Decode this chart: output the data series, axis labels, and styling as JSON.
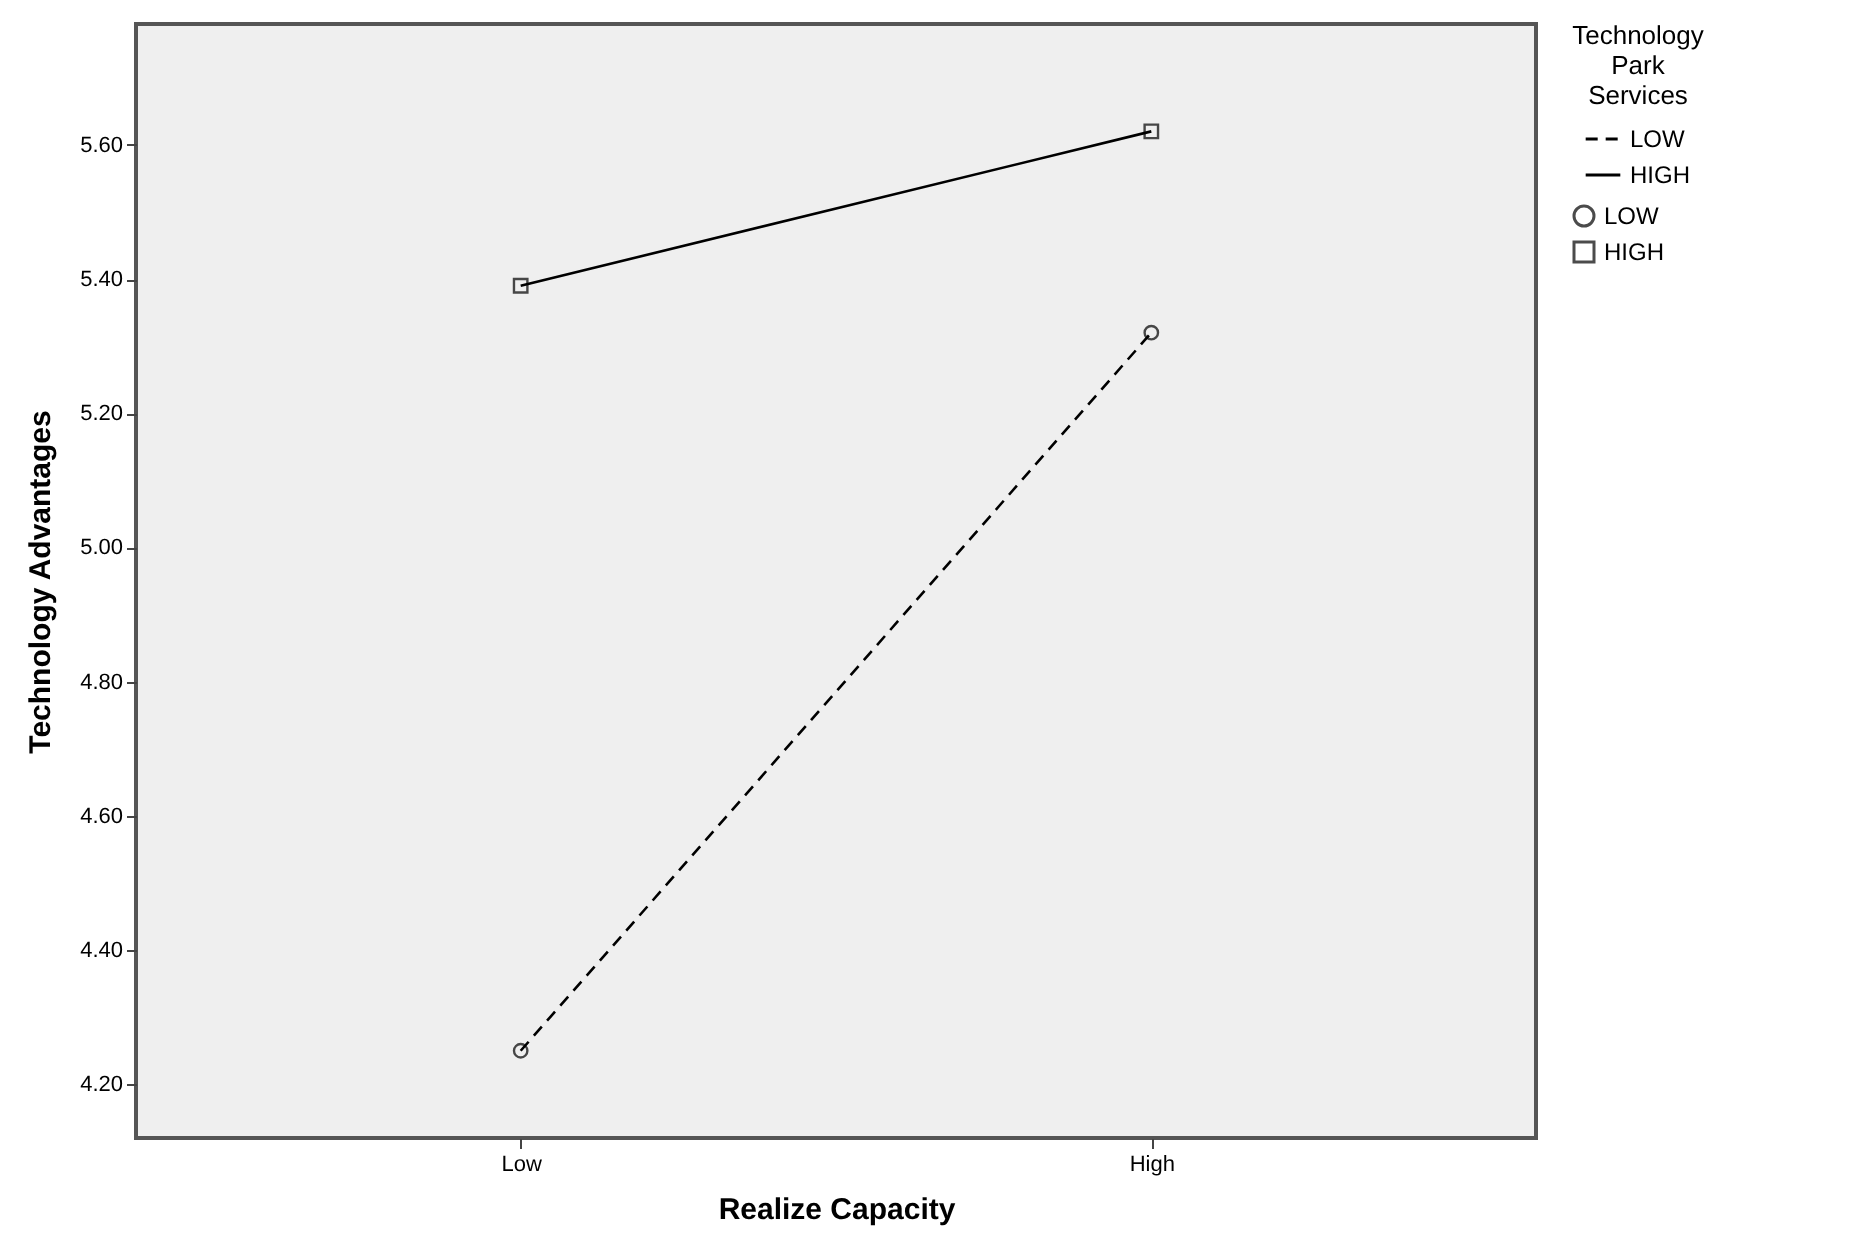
{
  "chart_data": {
    "type": "line",
    "xlabel": "Realize Capacity",
    "ylabel": "Technology Advantages",
    "legend_title": "Technology Park Services",
    "categories": [
      "Low",
      "High"
    ],
    "series": [
      {
        "name": "LOW",
        "color": "#000000",
        "values": [
          4.25,
          5.32
        ],
        "line_style": "dashed",
        "marker": "circle"
      },
      {
        "name": "HIGH",
        "color": "#000000",
        "values": [
          5.39,
          5.62
        ],
        "line_style": "solid",
        "marker": "square"
      }
    ],
    "ylim": [
      4.12,
      5.78
    ],
    "yticks": [
      {
        "value": 4.2,
        "label": "4.20"
      },
      {
        "value": 4.4,
        "label": "4.40"
      },
      {
        "value": 4.6,
        "label": "4.60"
      },
      {
        "value": 4.8,
        "label": "4.80"
      },
      {
        "value": 5.0,
        "label": "5.00"
      },
      {
        "value": 5.2,
        "label": "5.20"
      },
      {
        "value": 5.4,
        "label": "5.40"
      },
      {
        "value": 5.6,
        "label": "5.60"
      }
    ],
    "grid": false,
    "legend": "top right"
  }
}
